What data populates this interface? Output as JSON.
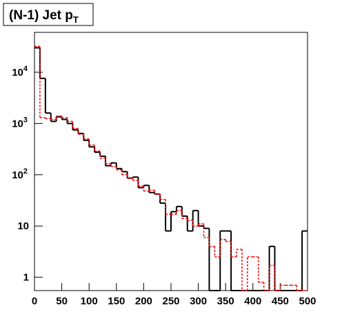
{
  "chart_data": {
    "type": "histogram",
    "title": "(N-1) Jet p",
    "title_subscript": "T",
    "bins": [
      0,
      10,
      20,
      30,
      40,
      50,
      60,
      70,
      80,
      90,
      100,
      110,
      120,
      130,
      140,
      150,
      160,
      170,
      180,
      190,
      200,
      210,
      220,
      230,
      240,
      250,
      260,
      270,
      280,
      290,
      300,
      310,
      320,
      330,
      340,
      350,
      360,
      370,
      380,
      390,
      400,
      410,
      420,
      430,
      440,
      450,
      460,
      470,
      480,
      490,
      500
    ],
    "series": [
      {
        "color": "#000000",
        "dashed": false,
        "values": [
          30000,
          7600,
          1600,
          1100,
          1350,
          1200,
          1000,
          750,
          640,
          470,
          350,
          275,
          230,
          150,
          170,
          132,
          115,
          86,
          90,
          56,
          62,
          45,
          42,
          28,
          8,
          19,
          24,
          15.6,
          8,
          20,
          10,
          9,
          0,
          0,
          8,
          8,
          0,
          0,
          0,
          0,
          0,
          0,
          0,
          4,
          0,
          0,
          0,
          0,
          0,
          8
        ]
      },
      {
        "color": "#ff0000",
        "dashed": true,
        "values": [
          32000,
          1300,
          1250,
          1200,
          1400,
          1300,
          1100,
          800,
          620,
          500,
          380,
          290,
          210,
          165,
          145,
          125,
          100,
          85,
          78,
          60,
          48,
          50,
          42,
          33,
          17,
          17,
          20,
          14,
          13,
          10,
          11,
          6,
          4,
          2.5,
          5.5,
          5,
          2.5,
          3.5,
          0,
          2.5,
          2.5,
          0.8,
          0,
          1.7,
          0,
          0.7,
          0.7,
          0.7,
          0,
          0
        ]
      }
    ],
    "xlim": [
      0,
      500
    ],
    "xticks": [
      0,
      50,
      100,
      150,
      200,
      250,
      300,
      350,
      400,
      450,
      500
    ],
    "ylim": [
      0.55,
      60000
    ],
    "log_y": true,
    "yticks": [
      1,
      10,
      {
        "value": 100,
        "label": "10",
        "exponent": "2"
      },
      {
        "value": 1000,
        "label": "10",
        "exponent": "3"
      },
      {
        "value": 10000,
        "label": "10",
        "exponent": "4"
      }
    ]
  }
}
